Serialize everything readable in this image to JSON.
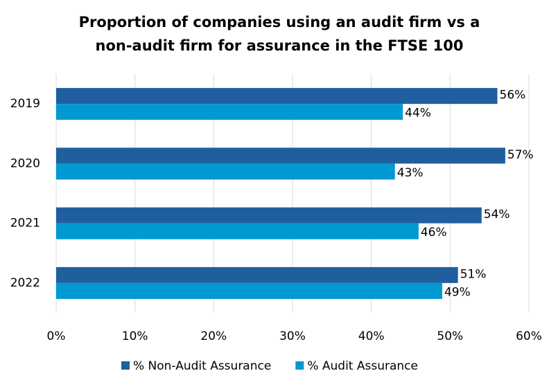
{
  "chart_data": {
    "type": "hbar",
    "title": [
      "Proportion of companies using an audit firm vs a",
      "non-audit firm for assurance in the FTSE 100"
    ],
    "categories": [
      "2019",
      "2020",
      "2021",
      "2022"
    ],
    "series": [
      {
        "name": "% Non-Audit Assurance",
        "color": "#1f5f9f",
        "values": [
          56,
          57,
          54,
          51
        ],
        "value_labels": [
          "56%",
          "57%",
          "54%",
          "51%"
        ]
      },
      {
        "name": "% Audit Assurance",
        "color": "#0099d1",
        "values": [
          44,
          43,
          46,
          49
        ],
        "value_labels": [
          "44%",
          "43%",
          "46%",
          "49%"
        ]
      }
    ],
    "xlim": [
      0,
      60
    ],
    "xticks": [
      {
        "value": 0,
        "label": "0%"
      },
      {
        "value": 10,
        "label": "10%"
      },
      {
        "value": 20,
        "label": "20%"
      },
      {
        "value": 30,
        "label": "30%"
      },
      {
        "value": 40,
        "label": "40%"
      },
      {
        "value": 50,
        "label": "50%"
      },
      {
        "value": 60,
        "label": "60%"
      }
    ],
    "grid": true,
    "legend": "bottom"
  }
}
